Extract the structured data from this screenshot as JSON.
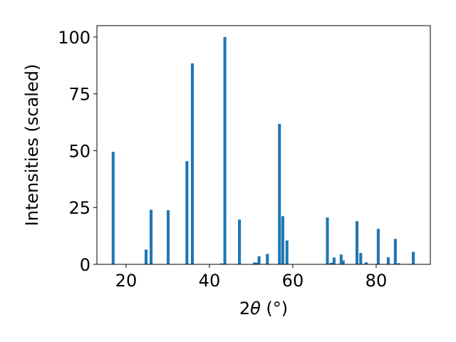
{
  "chart_data": {
    "type": "bar",
    "xlabel_prefix": "2",
    "xlabel_symbol": "θ",
    "xlabel_unit": " (°)",
    "ylabel": "Intensities (scaled)",
    "xlim": [
      13,
      93
    ],
    "ylim": [
      0,
      105
    ],
    "xticks": [
      20,
      40,
      60,
      80
    ],
    "yticks": [
      0,
      25,
      50,
      75,
      100
    ],
    "bar_color": "#1f77b4",
    "bar_width": 0.7,
    "x": [
      16.9,
      24.8,
      26.0,
      30.1,
      34.6,
      35.9,
      42.9,
      43.7,
      47.2,
      50.8,
      51.2,
      51.9,
      53.9,
      56.8,
      57.6,
      58.6,
      68.3,
      69.2,
      69.9,
      71.6,
      72.1,
      75.4,
      76.3,
      77.6,
      80.5,
      82.9,
      84.6,
      85.4,
      88.9
    ],
    "values": [
      49.5,
      6.5,
      24.0,
      23.8,
      45.4,
      88.4,
      0.4,
      100.0,
      19.7,
      0.8,
      0.8,
      3.6,
      4.6,
      61.8,
      21.2,
      10.5,
      20.6,
      0.7,
      3.0,
      4.3,
      1.7,
      19.0,
      5.0,
      0.9,
      15.6,
      3.1,
      11.2,
      0.5,
      5.5
    ]
  }
}
